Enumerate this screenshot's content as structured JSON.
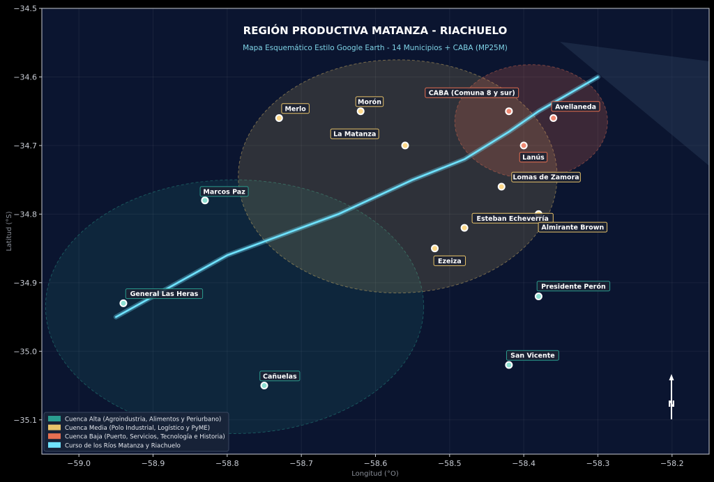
{
  "title": "REGIÓN PRODUCTIVA MATANZA - RIACHUELO",
  "subtitle": "Mapa Esquemático Estilo Google Earth - 14 Municipios + CABA (MP25M)",
  "xlabel": "Longitud (°O)",
  "ylabel": "Latitud (°S)",
  "north_label": "N",
  "colors": {
    "background": "#0b1530",
    "alta": "#2a9d8f",
    "media": "#e9c46a",
    "baja": "#e76f51",
    "river": "#6fe3ff"
  },
  "chart_data": {
    "type": "scatter",
    "xlim": [
      -59.05,
      -58.15
    ],
    "ylim": [
      -35.15,
      -34.5
    ],
    "x_ticks": [
      {
        "value": -59.0,
        "label": "−59.0"
      },
      {
        "value": -58.9,
        "label": "−58.9"
      },
      {
        "value": -58.8,
        "label": "−58.8"
      },
      {
        "value": -58.7,
        "label": "−58.7"
      },
      {
        "value": -58.6,
        "label": "−58.6"
      },
      {
        "value": -58.5,
        "label": "−58.5"
      },
      {
        "value": -58.4,
        "label": "−58.4"
      },
      {
        "value": -58.3,
        "label": "−58.3"
      },
      {
        "value": -58.2,
        "label": "−58.2"
      }
    ],
    "y_ticks": [
      {
        "value": -34.5,
        "label": "−34.5"
      },
      {
        "value": -34.6,
        "label": "−34.6"
      },
      {
        "value": -34.7,
        "label": "−34.7"
      },
      {
        "value": -34.8,
        "label": "−34.8"
      },
      {
        "value": -34.9,
        "label": "−34.9"
      },
      {
        "value": -35.0,
        "label": "−35.0"
      },
      {
        "value": -35.1,
        "label": "−35.1"
      }
    ],
    "zones": [
      {
        "id": "alta",
        "cx": -58.79,
        "cy": -34.935,
        "rx": 0.255,
        "ry": 0.185
      },
      {
        "id": "media",
        "cx": -58.57,
        "cy": -34.745,
        "rx": 0.215,
        "ry": 0.17
      },
      {
        "id": "baja",
        "cx": -58.39,
        "cy": -34.665,
        "rx": 0.103,
        "ry": 0.083
      }
    ],
    "river": [
      [
        -58.95,
        -34.95
      ],
      [
        -58.8,
        -34.86
      ],
      [
        -58.65,
        -34.8
      ],
      [
        -58.55,
        -34.75
      ],
      [
        -58.48,
        -34.72
      ],
      [
        -58.42,
        -34.68
      ],
      [
        -58.38,
        -34.65
      ],
      [
        -58.34,
        -34.625
      ],
      [
        -58.3,
        -34.6
      ]
    ],
    "municipalities": [
      {
        "name": "CABA (Comuna 8 y sur)",
        "x": -58.42,
        "y": -34.65,
        "zone": "baja",
        "lx": -58.47,
        "ly": -34.623
      },
      {
        "name": "Avellaneda",
        "x": -58.36,
        "y": -34.66,
        "zone": "baja",
        "lx": -58.33,
        "ly": -34.643
      },
      {
        "name": "Lanús",
        "x": -58.4,
        "y": -34.7,
        "zone": "baja",
        "lx": -58.387,
        "ly": -34.717
      },
      {
        "name": "Merlo",
        "x": -58.73,
        "y": -34.66,
        "zone": "media",
        "lx": -58.708,
        "ly": -34.646
      },
      {
        "name": "Morón",
        "x": -58.62,
        "y": -34.65,
        "zone": "media",
        "lx": -58.608,
        "ly": -34.636
      },
      {
        "name": "La Matanza",
        "x": -58.56,
        "y": -34.7,
        "zone": "media",
        "lx": -58.628,
        "ly": -34.683
      },
      {
        "name": "Lomas de Zamora",
        "x": -58.43,
        "y": -34.76,
        "zone": "media",
        "lx": -58.37,
        "ly": -34.746
      },
      {
        "name": "Esteban Echeverría",
        "x": -58.48,
        "y": -34.82,
        "zone": "media",
        "lx": -58.415,
        "ly": -34.806
      },
      {
        "name": "Almirante Brown",
        "x": -58.38,
        "y": -34.8,
        "zone": "media",
        "lx": -58.334,
        "ly": -34.819
      },
      {
        "name": "Ezeiza",
        "x": -58.52,
        "y": -34.85,
        "zone": "media",
        "lx": -58.5,
        "ly": -34.868
      },
      {
        "name": "Marcos Paz",
        "x": -58.83,
        "y": -34.78,
        "zone": "alta",
        "lx": -58.804,
        "ly": -34.767
      },
      {
        "name": "General Las Heras",
        "x": -58.94,
        "y": -34.93,
        "zone": "alta",
        "lx": -58.885,
        "ly": -34.916
      },
      {
        "name": "Presidente Perón",
        "x": -58.38,
        "y": -34.92,
        "zone": "alta",
        "lx": -58.333,
        "ly": -34.905
      },
      {
        "name": "San Vicente",
        "x": -58.42,
        "y": -35.02,
        "zone": "alta",
        "lx": -58.388,
        "ly": -35.006
      },
      {
        "name": "Cañuelas",
        "x": -58.75,
        "y": -35.05,
        "zone": "alta",
        "lx": -58.729,
        "ly": -35.036
      }
    ],
    "legend": {
      "placement": "lower-left",
      "entries": [
        {
          "zone": "alta",
          "label": "Cuenca Alta (Agroindustria, Alimentos y Periurbano)"
        },
        {
          "zone": "media",
          "label": "Cuenca Media (Polo Industrial, Logístico y PyME)"
        },
        {
          "zone": "baja",
          "label": "Cuenca Baja (Puerto, Servicios, Tecnología e Historia)"
        },
        {
          "zone": "river",
          "label": "Curso de los Ríos Matanza y Riachuelo"
        }
      ]
    }
  }
}
